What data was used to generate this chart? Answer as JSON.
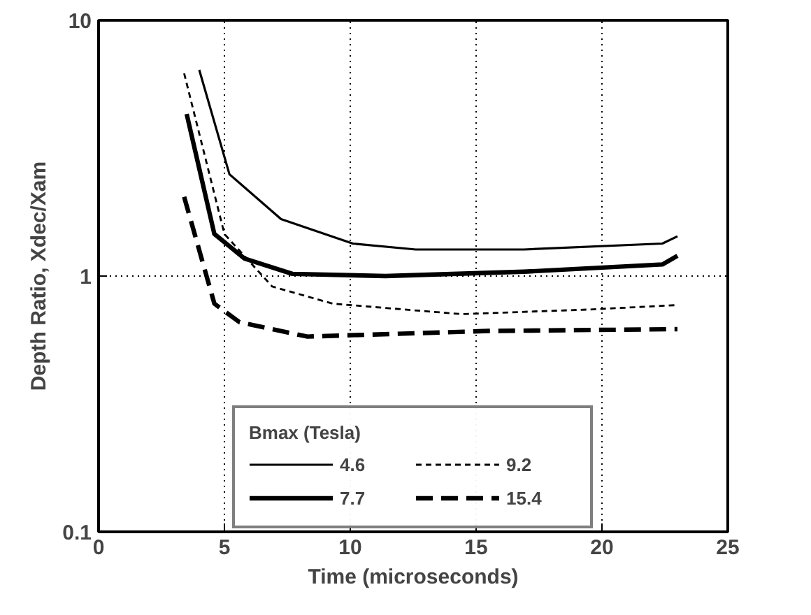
{
  "chart_data": {
    "type": "line",
    "xlabel": "Time (microseconds)",
    "ylabel": "Depth Ratio, Xdec/Xam",
    "legend_title": "Bmax (Tesla)",
    "log": "y",
    "xlim": [
      0,
      25
    ],
    "ylim": [
      0.1,
      10
    ],
    "xticks": [
      0,
      5,
      10,
      15,
      20,
      25
    ],
    "yticks": [
      0.1,
      1,
      10
    ],
    "grid": true,
    "legend": "bottom",
    "marker": "none",
    "series": [
      {
        "name": "4.6",
        "color": "#000000",
        "line_style": "solid",
        "x": [
          4.0,
          5.2,
          7.25,
          10.1,
          12.6,
          16.9,
          22.4,
          23
        ],
        "values": [
          6.4,
          2.5,
          1.67,
          1.34,
          1.27,
          1.27,
          1.34,
          1.43
        ]
      },
      {
        "name": "7.7",
        "color": "#000000",
        "line_style": "solid",
        "x": [
          3.5,
          4.6,
          5.8,
          7.7,
          11.4,
          16.9,
          22.4,
          23
        ],
        "values": [
          4.3,
          1.46,
          1.17,
          1.02,
          1.0,
          1.04,
          1.11,
          1.2
        ]
      },
      {
        "name": "9.2",
        "color": "#000000",
        "line_style": "dotted",
        "x": [
          3.4,
          5.0,
          6.9,
          9.3,
          14.4,
          19.5,
          23
        ],
        "values": [
          6.2,
          1.46,
          0.91,
          0.78,
          0.71,
          0.74,
          0.77
        ]
      },
      {
        "name": "15.4",
        "color": "#000000",
        "line_style": "dashed",
        "x": [
          3.4,
          4.6,
          5.6,
          8.3,
          15.5,
          23
        ],
        "values": [
          2.04,
          0.78,
          0.66,
          0.58,
          0.61,
          0.62
        ]
      }
    ]
  }
}
